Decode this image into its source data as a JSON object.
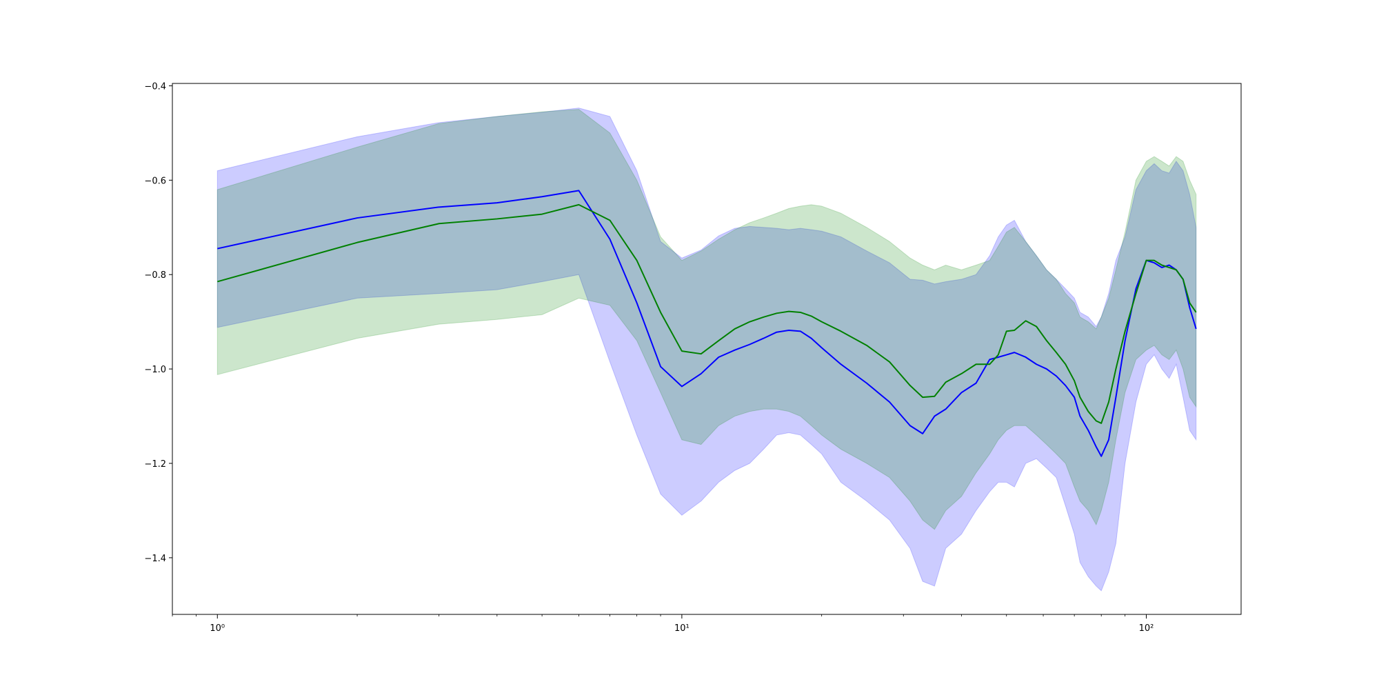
{
  "chart_data": {
    "type": "line",
    "title": "",
    "xlabel": "",
    "ylabel": "",
    "xscale": "log",
    "xlim": [
      0.8,
      160
    ],
    "ylim": [
      -1.52,
      -0.395
    ],
    "grid": false,
    "legend": "none",
    "x_ticks": [
      {
        "value": 1,
        "label": "10⁰"
      },
      {
        "value": 10,
        "label": "10¹"
      },
      {
        "value": 100,
        "label": "10²"
      }
    ],
    "y_ticks": [
      {
        "value": -0.4,
        "label": "−0.4"
      },
      {
        "value": -0.6,
        "label": "−0.6"
      },
      {
        "value": -0.8,
        "label": "−0.8"
      },
      {
        "value": -1.0,
        "label": "−1.0"
      },
      {
        "value": -1.2,
        "label": "−1.2"
      },
      {
        "value": -1.4,
        "label": "−1.4"
      }
    ],
    "series": [
      {
        "color": "#0000ff",
        "band_color": "#0000ff",
        "band_opacity": 0.2,
        "x": [
          1,
          2,
          3,
          4,
          5,
          6,
          7,
          8,
          9,
          10,
          11,
          12,
          13,
          14,
          15,
          16,
          17,
          18,
          19,
          20,
          22,
          25,
          28,
          31,
          33,
          35,
          37,
          40,
          43,
          46,
          48,
          50,
          52,
          55,
          58,
          61,
          64,
          67,
          70,
          72,
          75,
          78,
          80,
          83,
          86,
          90,
          95,
          100,
          104,
          108,
          112,
          116,
          120,
          124,
          128
        ],
        "mean": [
          -0.745,
          -0.68,
          -0.657,
          -0.648,
          -0.635,
          -0.622,
          -0.725,
          -0.86,
          -0.995,
          -1.037,
          -1.01,
          -0.975,
          -0.96,
          -0.948,
          -0.935,
          -0.922,
          -0.918,
          -0.92,
          -0.935,
          -0.955,
          -0.99,
          -1.03,
          -1.07,
          -1.12,
          -1.137,
          -1.1,
          -1.085,
          -1.05,
          -1.03,
          -0.98,
          -0.975,
          -0.97,
          -0.965,
          -0.975,
          -0.99,
          -1.0,
          -1.015,
          -1.035,
          -1.06,
          -1.1,
          -1.13,
          -1.165,
          -1.185,
          -1.15,
          -1.06,
          -0.94,
          -0.83,
          -0.77,
          -0.775,
          -0.785,
          -0.78,
          -0.79,
          -0.81,
          -0.87,
          -0.915
        ],
        "upper": [
          -0.58,
          -0.508,
          -0.478,
          -0.465,
          -0.456,
          -0.447,
          -0.465,
          -0.58,
          -0.73,
          -0.765,
          -0.748,
          -0.718,
          -0.702,
          -0.698,
          -0.7,
          -0.702,
          -0.705,
          -0.702,
          -0.705,
          -0.708,
          -0.72,
          -0.75,
          -0.775,
          -0.81,
          -0.812,
          -0.82,
          -0.815,
          -0.81,
          -0.8,
          -0.76,
          -0.72,
          -0.695,
          -0.685,
          -0.73,
          -0.76,
          -0.79,
          -0.81,
          -0.83,
          -0.85,
          -0.88,
          -0.89,
          -0.91,
          -0.89,
          -0.84,
          -0.77,
          -0.72,
          -0.62,
          -0.58,
          -0.565,
          -0.58,
          -0.585,
          -0.56,
          -0.58,
          -0.63,
          -0.7
        ],
        "lower": [
          -0.912,
          -0.85,
          -0.84,
          -0.832,
          -0.815,
          -0.8,
          -0.985,
          -1.14,
          -1.265,
          -1.31,
          -1.28,
          -1.24,
          -1.215,
          -1.2,
          -1.17,
          -1.14,
          -1.135,
          -1.14,
          -1.16,
          -1.18,
          -1.24,
          -1.28,
          -1.32,
          -1.38,
          -1.45,
          -1.46,
          -1.38,
          -1.35,
          -1.3,
          -1.26,
          -1.24,
          -1.24,
          -1.25,
          -1.2,
          -1.19,
          -1.21,
          -1.23,
          -1.29,
          -1.35,
          -1.41,
          -1.44,
          -1.46,
          -1.47,
          -1.43,
          -1.37,
          -1.2,
          -1.07,
          -0.99,
          -0.97,
          -1.0,
          -1.02,
          -0.99,
          -1.06,
          -1.13,
          -1.15
        ]
      },
      {
        "color": "#008000",
        "band_color": "#008000",
        "band_opacity": 0.2,
        "x": [
          1,
          2,
          3,
          4,
          5,
          6,
          7,
          8,
          9,
          10,
          11,
          12,
          13,
          14,
          15,
          16,
          17,
          18,
          19,
          20,
          22,
          25,
          28,
          31,
          33,
          35,
          37,
          40,
          43,
          46,
          48,
          50,
          52,
          55,
          58,
          61,
          64,
          67,
          70,
          72,
          75,
          78,
          80,
          83,
          86,
          90,
          95,
          100,
          104,
          108,
          112,
          116,
          120,
          124,
          128
        ],
        "mean": [
          -0.815,
          -0.732,
          -0.692,
          -0.682,
          -0.672,
          -0.652,
          -0.685,
          -0.77,
          -0.88,
          -0.962,
          -0.968,
          -0.94,
          -0.915,
          -0.9,
          -0.89,
          -0.882,
          -0.878,
          -0.88,
          -0.888,
          -0.9,
          -0.92,
          -0.95,
          -0.985,
          -1.035,
          -1.06,
          -1.058,
          -1.028,
          -1.01,
          -0.99,
          -0.99,
          -0.97,
          -0.92,
          -0.918,
          -0.898,
          -0.91,
          -0.94,
          -0.965,
          -0.99,
          -1.025,
          -1.06,
          -1.09,
          -1.11,
          -1.115,
          -1.07,
          -1.0,
          -0.92,
          -0.84,
          -0.77,
          -0.77,
          -0.78,
          -0.785,
          -0.79,
          -0.81,
          -0.86,
          -0.88
        ],
        "upper": [
          -0.62,
          -0.53,
          -0.48,
          -0.465,
          -0.455,
          -0.45,
          -0.5,
          -0.6,
          -0.72,
          -0.77,
          -0.75,
          -0.725,
          -0.705,
          -0.69,
          -0.68,
          -0.67,
          -0.66,
          -0.655,
          -0.652,
          -0.655,
          -0.67,
          -0.7,
          -0.73,
          -0.765,
          -0.78,
          -0.79,
          -0.78,
          -0.79,
          -0.78,
          -0.77,
          -0.74,
          -0.71,
          -0.7,
          -0.73,
          -0.76,
          -0.79,
          -0.81,
          -0.84,
          -0.86,
          -0.89,
          -0.9,
          -0.915,
          -0.89,
          -0.85,
          -0.79,
          -0.71,
          -0.6,
          -0.56,
          -0.55,
          -0.56,
          -0.57,
          -0.55,
          -0.56,
          -0.6,
          -0.63
        ],
        "lower": [
          -1.012,
          -0.935,
          -0.905,
          -0.895,
          -0.885,
          -0.85,
          -0.865,
          -0.94,
          -1.05,
          -1.15,
          -1.16,
          -1.12,
          -1.1,
          -1.09,
          -1.085,
          -1.085,
          -1.09,
          -1.1,
          -1.12,
          -1.14,
          -1.17,
          -1.2,
          -1.23,
          -1.28,
          -1.32,
          -1.34,
          -1.3,
          -1.27,
          -1.22,
          -1.18,
          -1.15,
          -1.13,
          -1.12,
          -1.12,
          -1.14,
          -1.16,
          -1.18,
          -1.2,
          -1.25,
          -1.28,
          -1.3,
          -1.33,
          -1.3,
          -1.24,
          -1.15,
          -1.05,
          -0.98,
          -0.96,
          -0.95,
          -0.97,
          -0.98,
          -0.96,
          -1.0,
          -1.06,
          -1.08
        ]
      }
    ]
  }
}
